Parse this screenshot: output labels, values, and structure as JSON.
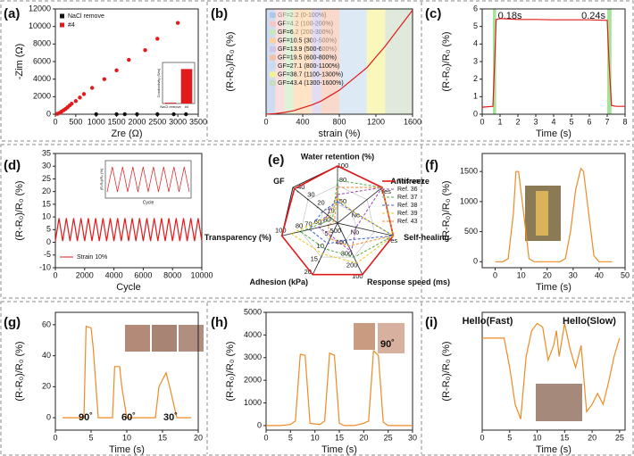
{
  "chart_data": [
    {
      "type": "scatter",
      "title": "(a)",
      "xlabel": "Zre (Ω)",
      "ylabel": "-Zim (Ω)",
      "xlim": [
        0,
        3500
      ],
      "xticks": [
        0,
        500,
        1000,
        1500,
        2000,
        2500,
        3000,
        3500
      ],
      "ylim": [
        0,
        12000
      ],
      "yticks": [
        0,
        2000,
        4000,
        6000,
        8000,
        10000,
        12000
      ],
      "series": [
        {
          "name": "NaCl remove",
          "color": "#111111",
          "x": [
            1000,
            1500,
            1700,
            2000,
            2500,
            2900,
            3200
          ],
          "values": [
            0,
            0,
            0,
            0,
            0,
            0,
            0
          ]
        },
        {
          "name": "#4",
          "color": "#e31a1c",
          "x": [
            50,
            100,
            150,
            200,
            250,
            300,
            350,
            400,
            500,
            600,
            700,
            900,
            1200,
            1500,
            1800,
            2200,
            2500,
            3000
          ],
          "values": [
            50,
            150,
            300,
            450,
            600,
            800,
            1000,
            1200,
            1500,
            1900,
            2300,
            3000,
            4000,
            5000,
            6200,
            7300,
            8600,
            10400
          ]
        }
      ],
      "inset": {
        "ylabel": "Conductivity (S/m)",
        "categories": [
          "NaCl remove",
          "#4"
        ],
        "values": [
          0.1,
          4.2
        ],
        "ylim": [
          0,
          5
        ],
        "color": "#e31a1c"
      }
    },
    {
      "type": "line",
      "title": "(b)",
      "xlabel": "strain (%)",
      "ylabel": "(R-R₀)/R₀ (%)",
      "xlim": [
        0,
        1600
      ],
      "xticks": [
        0,
        400,
        800,
        1200,
        1600
      ],
      "ylim": [
        0,
        380
      ],
      "color": "#e31a1c",
      "x": [
        0,
        100,
        200,
        300,
        400,
        500,
        600,
        700,
        800,
        900,
        1000,
        1100,
        1200,
        1300,
        1400,
        1500,
        1600
      ],
      "values": [
        0,
        2.2,
        6.4,
        12.6,
        23.1,
        33.6,
        47.5,
        67,
        86.5,
        113.6,
        140.7,
        167.8,
        206.5,
        245.2,
        288.6,
        332,
        375.4
      ],
      "bands": [
        {
          "name": "GF=2.2 (0-100%)",
          "start": 0,
          "end": 100,
          "color": "#aec7e8"
        },
        {
          "name": "GF=4.2 (100-200%)",
          "start": 100,
          "end": 200,
          "color": "#f7c6c7"
        },
        {
          "name": "GF=6.2 (200-300%)",
          "start": 200,
          "end": 300,
          "color": "#c7e9c0"
        },
        {
          "name": "GF=10.5 (300-500%)",
          "start": 300,
          "end": 500,
          "color": "#fdd0a2"
        },
        {
          "name": "GF=13.9 (500-600%)",
          "start": 500,
          "end": 600,
          "color": "#cfc6ea"
        },
        {
          "name": "GF=19.5 (600-800%)",
          "start": 600,
          "end": 800,
          "color": "#f4c0a8"
        },
        {
          "name": "GF=27.1 (800-1100%)",
          "start": 800,
          "end": 1100,
          "color": "#c6dbef"
        },
        {
          "name": "GF=38.7 (1100-1300%)",
          "start": 1100,
          "end": 1300,
          "color": "#f5f28f"
        },
        {
          "name": "GF=43.4 (1300-1600%)",
          "start": 1300,
          "end": 1600,
          "color": "#c9dcc4"
        }
      ]
    },
    {
      "type": "line",
      "title": "(c)",
      "xlabel": "Time (s)",
      "ylabel": "(R-R₀)/R₀ (%)",
      "xlim": [
        0,
        8
      ],
      "xticks": [
        0,
        1,
        2,
        3,
        4,
        5,
        6,
        7,
        8
      ],
      "ylim": [
        0,
        6
      ],
      "yticks": [
        0,
        1,
        2,
        3,
        4,
        5,
        6
      ],
      "color": "#e31a1c",
      "x": [
        0,
        0.6,
        0.7,
        0.78,
        1,
        2,
        3,
        4,
        5,
        6,
        7,
        7.1,
        7.24,
        7.5,
        8
      ],
      "values": [
        0.4,
        0.45,
        3,
        5.4,
        5.45,
        5.4,
        5.4,
        5.38,
        5.38,
        5.38,
        5.35,
        3,
        0.5,
        0.45,
        0.45
      ],
      "highlights": [
        {
          "label": "0.18s",
          "start": 0.6,
          "end": 0.78
        },
        {
          "label": "0.24s",
          "start": 7.0,
          "end": 7.24
        }
      ],
      "highlight_color": "#a6e39a"
    },
    {
      "type": "line",
      "title": "(d)",
      "xlabel": "Cycle",
      "ylabel": "(R-R₀)/R₀ (%)",
      "xlim": [
        0,
        10000
      ],
      "xticks": [
        0,
        2000,
        4000,
        6000,
        8000,
        10000
      ],
      "ylim": [
        -10,
        35
      ],
      "yticks": [
        -10,
        -5,
        0,
        5,
        10,
        15,
        20,
        25,
        30,
        35
      ],
      "series": [
        {
          "name": "Strain 10%",
          "color": "#e31a1c",
          "x": [
            0,
            250,
            500,
            750,
            1000,
            1250,
            1500,
            1750,
            2000,
            2250,
            2500,
            2750,
            3000,
            3250,
            3500,
            3750,
            4000,
            4250,
            4500,
            4750,
            5000,
            5250,
            5500,
            5750,
            6000,
            6250,
            6500,
            6750,
            7000,
            7250,
            7500,
            7750,
            8000,
            8250,
            8500,
            8750,
            9000,
            9250,
            9500,
            9750,
            10000
          ],
          "values": [
            0.5,
            9.5,
            0.5,
            9.5,
            0.5,
            9.5,
            0.5,
            9.5,
            0.5,
            9.5,
            0.5,
            9.5,
            0.5,
            9.5,
            0.5,
            9.5,
            0.5,
            9.5,
            0.5,
            9.5,
            0.5,
            9.5,
            0.5,
            9.5,
            0.5,
            9.5,
            0.5,
            9.5,
            0.5,
            9.5,
            0.5,
            9.5,
            0.5,
            9.5,
            0.5,
            9.5,
            0.5,
            9.5,
            0.5,
            9.5,
            0.5
          ]
        }
      ],
      "inset": {
        "xlabel": "Cycle",
        "ylabel": "(R-R₀)/R₀ (%)",
        "values": [
          0,
          8,
          0,
          8,
          0,
          8,
          0,
          8,
          0,
          8,
          0,
          8,
          0,
          8,
          0,
          8,
          0
        ],
        "ylim": [
          -2,
          10
        ],
        "color": "#e31a1c"
      }
    },
    {
      "type": "radar",
      "title": "(e)",
      "axes": [
        {
          "name": "Water retention (%)",
          "lim": [
            20,
            100
          ],
          "ticks": [
            50,
            80,
            100
          ]
        },
        {
          "name": "Antifreeze",
          "lim": [
            -0.5,
            1
          ],
          "ticks": [
            {
              "value": 0,
              "label": "No"
            },
            {
              "value": 1,
              "label": "Yes"
            }
          ]
        },
        {
          "name": "Self-healing",
          "lim": [
            -0.5,
            1
          ],
          "ticks": [
            {
              "value": 0,
              "label": "No"
            },
            {
              "value": 1,
              "label": "Yes"
            }
          ]
        },
        {
          "name": "Response speed (ms)",
          "lim": [
            550,
            100
          ],
          "ticks": [
            500,
            400,
            300,
            200,
            100
          ]
        },
        {
          "name": "Adhesion (kPa)",
          "lim": [
            0,
            20
          ],
          "ticks": [
            5,
            10,
            15,
            20
          ]
        },
        {
          "name": "Transparency (%)",
          "lim": [
            40,
            100
          ],
          "ticks": [
            50,
            60,
            70,
            80,
            100
          ]
        },
        {
          "name": "GF",
          "lim": [
            0,
            45
          ],
          "ticks": [
            10,
            20,
            30,
            40
          ]
        }
      ],
      "series": [
        {
          "name": "This work",
          "color": "#e31a1c",
          "values": [
            100,
            1,
            1,
            100,
            20,
            100,
            43.4
          ]
        },
        {
          "name": "Ref. 36",
          "color": "#9b3fb5",
          "values": [
            60,
            1,
            0,
            300,
            5,
            60,
            10
          ]
        },
        {
          "name": "Ref. 37",
          "color": "#4daf4a",
          "values": [
            80,
            1,
            1,
            250,
            10,
            80,
            5
          ]
        },
        {
          "name": "Ref. 38",
          "color": "#3a5fcd",
          "values": [
            50,
            0,
            1,
            400,
            8,
            70,
            15
          ]
        },
        {
          "name": "Ref. 39",
          "color": "#e6c619",
          "values": [
            55,
            0,
            1,
            200,
            12,
            90,
            8
          ]
        },
        {
          "name": "Ref. 43",
          "color": "#f08a24",
          "values": [
            70,
            1,
            1,
            350,
            6,
            50,
            3
          ]
        }
      ]
    },
    {
      "type": "line",
      "title": "(f)",
      "xlabel": "Time (s)",
      "ylabel": "(R-R₀)/R₀ (%)",
      "xlim": [
        -5,
        50
      ],
      "xticks": [
        0,
        10,
        20,
        30,
        40,
        50
      ],
      "ylim": [
        -100,
        1800
      ],
      "yticks": [
        0,
        500,
        1000,
        1500
      ],
      "color": "#f08a24",
      "x": [
        0,
        3,
        5,
        7,
        8,
        9,
        11,
        13,
        15,
        17,
        20,
        25,
        27,
        29,
        31,
        33,
        34,
        36,
        38,
        40,
        45
      ],
      "values": [
        0,
        0,
        50,
        800,
        1500,
        1500,
        800,
        50,
        0,
        0,
        0,
        0,
        50,
        500,
        1200,
        1550,
        1500,
        800,
        100,
        0,
        0
      ]
    },
    {
      "type": "line",
      "title": "(g)",
      "xlabel": "Time (s)",
      "ylabel": "(R-R₀)/R₀ (%)",
      "xlim": [
        0,
        20
      ],
      "xticks": [
        0,
        5,
        10,
        15,
        20
      ],
      "ylim": [
        -8,
        68
      ],
      "yticks": [
        0,
        20,
        40,
        60
      ],
      "color": "#f08a24",
      "x": [
        1,
        2,
        3,
        4,
        4.3,
        5,
        5.3,
        6,
        7,
        8,
        8.3,
        9,
        9.3,
        10,
        11,
        12,
        13,
        14,
        14.5,
        15.5,
        16,
        17,
        18,
        19
      ],
      "values": [
        0,
        0,
        0,
        0,
        59,
        58,
        45,
        0,
        0,
        0,
        33,
        33,
        20,
        0,
        0,
        0,
        0,
        0,
        20,
        29,
        20,
        0,
        0,
        0
      ],
      "annotations": [
        "90˚",
        "60˚",
        "30˚"
      ]
    },
    {
      "type": "line",
      "title": "(h)",
      "xlabel": "Time (s)",
      "ylabel": "(R-R₀)/R₀ (%)",
      "xlim": [
        0,
        30
      ],
      "xticks": [
        0,
        5,
        10,
        15,
        20,
        25,
        30
      ],
      "ylim": [
        -200,
        5000
      ],
      "yticks": [
        0,
        1000,
        2000,
        3000,
        4000,
        5000
      ],
      "color": "#f08a24",
      "x": [
        0,
        3,
        5,
        6,
        7,
        8,
        9,
        11,
        12,
        13,
        14,
        15,
        16,
        18,
        20,
        21,
        22,
        23,
        24,
        25,
        27,
        30
      ],
      "values": [
        0,
        0,
        50,
        200,
        3150,
        3100,
        100,
        50,
        200,
        3200,
        3100,
        100,
        0,
        0,
        100,
        200,
        3300,
        3100,
        150,
        0,
        0,
        0
      ],
      "annotations": [
        "90˚"
      ]
    },
    {
      "type": "line",
      "title": "(i)",
      "xlabel": "Time (s)",
      "ylabel": "(R-R₀)/R₀ (%)",
      "xlim": [
        0,
        26
      ],
      "xticks": [
        0,
        5,
        10,
        15,
        20,
        25
      ],
      "ylim": [
        -25,
        7
      ],
      "color": "#f08a24",
      "x": [
        0,
        2,
        4,
        5,
        6,
        7,
        8,
        9,
        10,
        11,
        12,
        13,
        13.5,
        14,
        15,
        16,
        17,
        18,
        19,
        20,
        21,
        22,
        23,
        24,
        25
      ],
      "values": [
        0,
        0,
        0,
        -8,
        -18,
        -22,
        -5,
        2,
        4,
        3,
        -6,
        -2,
        2,
        -5,
        4,
        -3,
        -8,
        -2,
        -20,
        -18,
        -15,
        -18,
        -12,
        -5,
        0
      ],
      "annotations": [
        "Hello(Fast)",
        "Hello(Slow)"
      ]
    }
  ]
}
